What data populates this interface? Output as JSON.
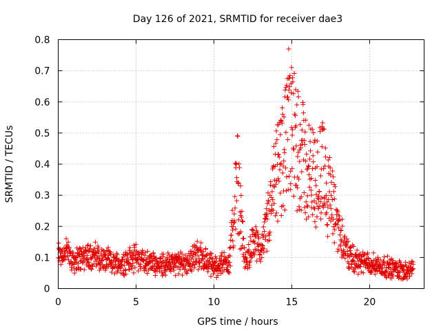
{
  "chart_data": {
    "type": "scatter",
    "title": "Day 126 of 2021, SRMTID for receiver dae3",
    "xlabel": "GPS time / hours",
    "ylabel": "SRMTID / TECUs",
    "xlim": [
      0,
      23.5
    ],
    "ylim": [
      0,
      0.8
    ],
    "xticks": [
      0,
      5,
      10,
      15,
      20
    ],
    "yticks": [
      0,
      0.1,
      0.2,
      0.3,
      0.4,
      0.5,
      0.6,
      0.7,
      0.8
    ],
    "xtick_labels": [
      "0",
      "5",
      "10",
      "15",
      "20"
    ],
    "ytick_labels": [
      "0",
      "0.1",
      "0.2",
      "0.3",
      "0.4",
      "0.5",
      "0.6",
      "0.7",
      "0.8"
    ],
    "grid": true,
    "marker": "plus",
    "color": "#e00000",
    "series": [
      {
        "name": "SRMTID",
        "x_range": [
          0,
          22.8
        ],
        "approx_profile": {
          "x": [
            0,
            0.5,
            1,
            2,
            3,
            4,
            5,
            6,
            7,
            8,
            9,
            10,
            11,
            11.5,
            12,
            12.5,
            13,
            13.5,
            14,
            14.5,
            15,
            15.5,
            16,
            16.5,
            17,
            17.5,
            18,
            18.5,
            19,
            20,
            21,
            22,
            22.8
          ],
          "y": [
            0.11,
            0.12,
            0.09,
            0.11,
            0.09,
            0.08,
            0.1,
            0.08,
            0.08,
            0.08,
            0.11,
            0.07,
            0.09,
            0.35,
            0.08,
            0.15,
            0.12,
            0.22,
            0.35,
            0.45,
            0.5,
            0.45,
            0.38,
            0.35,
            0.38,
            0.28,
            0.2,
            0.12,
            0.09,
            0.08,
            0.07,
            0.06,
            0.06
          ]
        },
        "peak": {
          "x": 14.8,
          "y": 0.77
        }
      }
    ]
  }
}
